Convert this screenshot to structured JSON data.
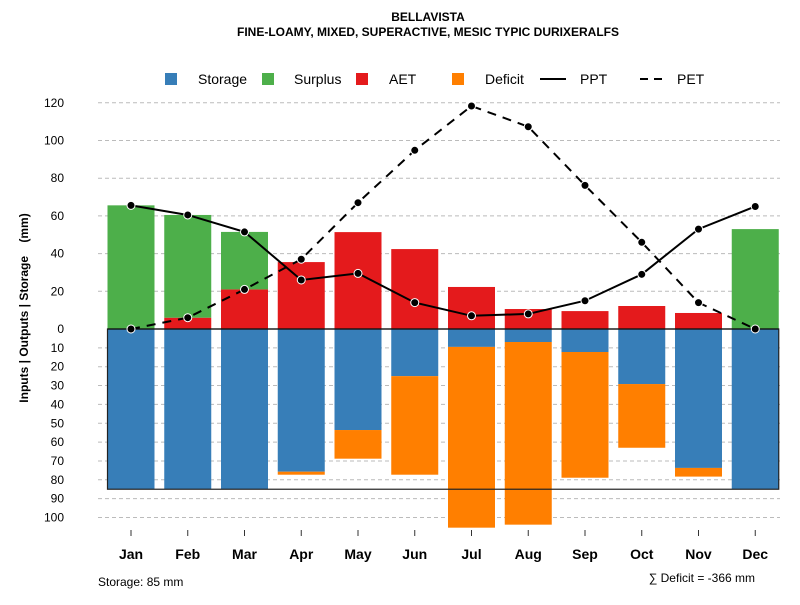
{
  "chart_data": {
    "type": "bar",
    "title": "BELLAVISTA",
    "subtitle": "FINE-LOAMY, MIXED, SUPERACTIVE, MESIC TYPIC DURIXERALFS",
    "ylabel": "Inputs | Outputs | Storage    (mm)",
    "ylim": [
      -100,
      120
    ],
    "yticks": [
      120,
      100,
      80,
      60,
      40,
      20,
      0,
      -10,
      -20,
      -30,
      -40,
      -50,
      -60,
      -70,
      -80,
      -90,
      -100
    ],
    "ytick_labels": [
      "120",
      "100",
      "80",
      "60",
      "40",
      "20",
      "0",
      "10",
      "20",
      "30",
      "40",
      "50",
      "60",
      "70",
      "80",
      "90",
      "100"
    ],
    "grid": true,
    "legend_position": "top",
    "legend": [
      {
        "name": "Storage",
        "kind": "box",
        "color": "#377eb8"
      },
      {
        "name": "Surplus",
        "kind": "box",
        "color": "#4daf4a"
      },
      {
        "name": "AET",
        "kind": "box",
        "color": "#e41a1c"
      },
      {
        "name": "Deficit",
        "kind": "box",
        "color": "#ff7f00"
      },
      {
        "name": "PPT",
        "kind": "solid"
      },
      {
        "name": "PET",
        "kind": "dashed"
      }
    ],
    "categories": [
      "Jan",
      "Feb",
      "Mar",
      "Apr",
      "May",
      "Jun",
      "Jul",
      "Aug",
      "Sep",
      "Oct",
      "Nov",
      "Dec"
    ],
    "series": [
      {
        "name": "AET",
        "values": [
          0,
          6,
          21,
          35.5,
          51.4,
          42.4,
          22.3,
          10.6,
          9.5,
          12.2,
          8.5,
          0
        ]
      },
      {
        "name": "Surplus",
        "values": [
          65.6,
          54.5,
          30.5,
          0,
          0,
          0,
          0,
          0,
          0,
          0,
          0,
          53
        ]
      },
      {
        "name": "Storage",
        "values": [
          85,
          85,
          85,
          75.7,
          53.6,
          25,
          9.5,
          6.9,
          12.2,
          29.2,
          73.7,
          85
        ]
      },
      {
        "name": "Deficit",
        "values": [
          0,
          0,
          0,
          1.6,
          15.2,
          52.3,
          95.9,
          96.9,
          66.7,
          33.8,
          4.6,
          0
        ]
      },
      {
        "name": "PPT",
        "values": [
          65.6,
          60.5,
          51.5,
          26,
          29.5,
          14,
          7,
          8,
          15,
          29,
          53,
          65
        ]
      },
      {
        "name": "PET",
        "values": [
          0,
          6,
          21,
          37,
          67,
          94.8,
          118.3,
          107.3,
          76.2,
          46,
          14,
          0
        ]
      }
    ],
    "storage_capacity": 85,
    "storage_note": "Storage: 85 mm",
    "deficit_note": "∑ Deficit = -366 mm",
    "colors": {
      "storage": "#377eb8",
      "surplus": "#4daf4a",
      "aet": "#e41a1c",
      "deficit": "#ff7f00"
    }
  }
}
